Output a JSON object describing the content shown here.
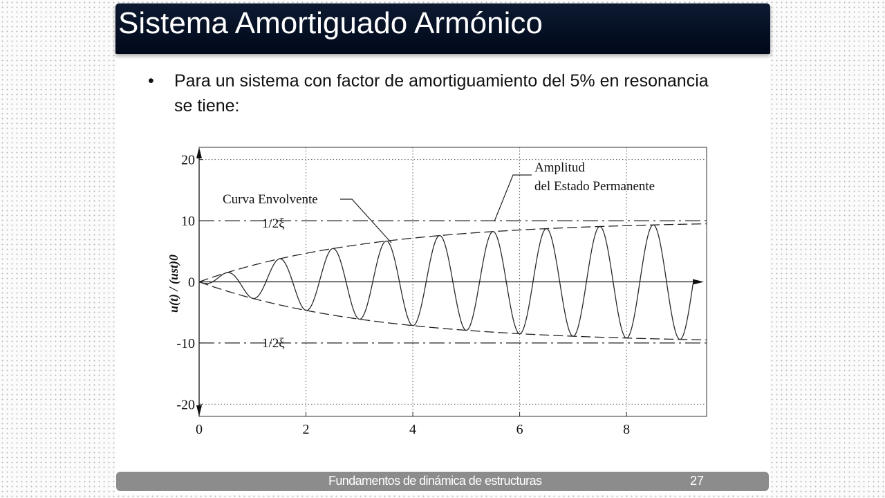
{
  "slide": {
    "title": "Sistema Amortiguado Armónico",
    "bullet": "Para un sistema con factor de amortiguamiento del 5% en resonancia se tiene:"
  },
  "footer": {
    "text": "Fundamentos de dinámica de estructuras",
    "page_number": "27"
  },
  "colors": {
    "title_bar": "#00081a",
    "footer_bar": "#8c8c8c",
    "curve": "#2a2a2a"
  },
  "chart_data": {
    "type": "line",
    "xlim": [
      0,
      9.5
    ],
    "ylim": [
      -22,
      22
    ],
    "x_ticks": [
      "0",
      "2",
      "4",
      "6",
      "8"
    ],
    "x_tick_values": [
      0,
      2,
      4,
      6,
      8
    ],
    "y_ticks": [
      "20",
      "10",
      "0",
      "-10",
      "-20"
    ],
    "y_tick_values": [
      20,
      10,
      0,
      -10,
      -20
    ],
    "ylabel": "u(t) / (ust)0",
    "grid": "dotted",
    "damping_ratio": 0.05,
    "series": [
      {
        "style": "solid",
        "formula": "u(t)/(ust)0 = (1/2ξ)(e^(-2πξt) - 1) cos(2πt)"
      },
      {
        "style": "dashed",
        "formula": "±(1/2ξ)(1 - e^(-2πξt))"
      },
      {
        "style": "dash-dot",
        "value": 10
      },
      {
        "style": "dash-dot",
        "value": -10
      }
    ],
    "annotations": {
      "envelope": "Curva Envolvente",
      "steady_state_line1": "Amplitud",
      "steady_state_line2": "del Estado Permanente",
      "upper_label": "1/2ξ",
      "lower_label": "1/2ξ"
    }
  }
}
